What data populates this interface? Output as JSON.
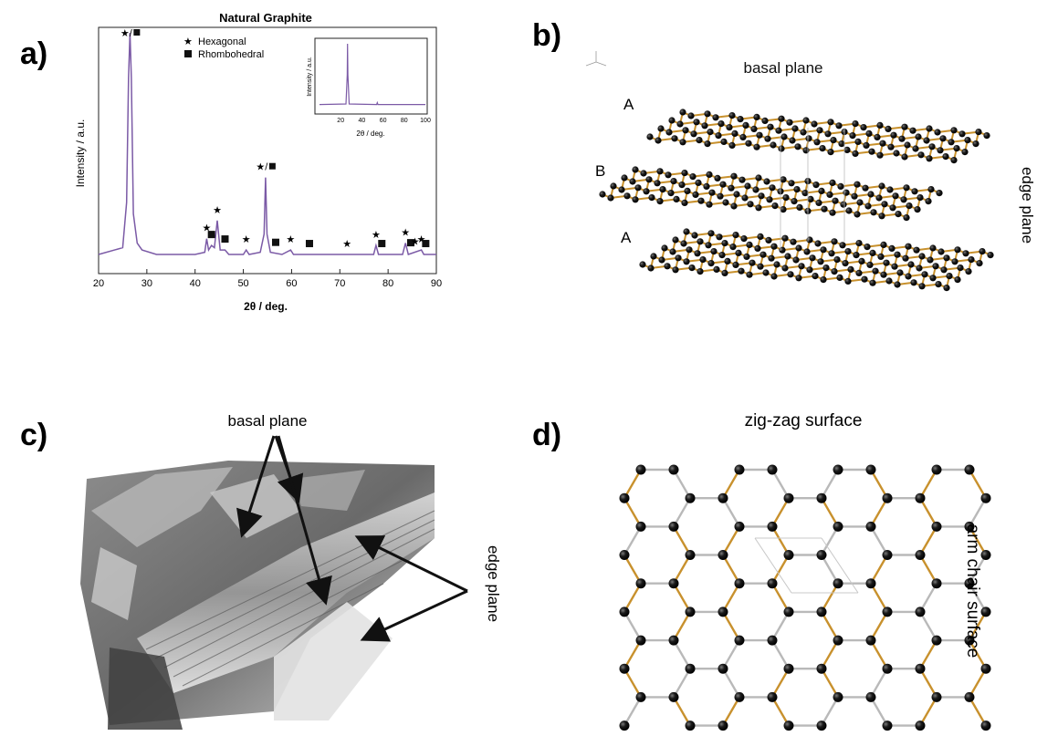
{
  "panels": {
    "a": {
      "letter": "a)",
      "title": "Natural Graphite",
      "legend": [
        {
          "symbol": "star",
          "label": "Hexagonal"
        },
        {
          "symbol": "square",
          "label": "Rhombohedral"
        }
      ],
      "peak_markers": [
        {
          "x": 26.5,
          "type": "star/square"
        },
        {
          "x": 42.4,
          "type": "star"
        },
        {
          "x": 43.4,
          "type": "square"
        },
        {
          "x": 44.6,
          "type": "star"
        },
        {
          "x": 46.2,
          "type": "square"
        },
        {
          "x": 50.6,
          "type": "star"
        },
        {
          "x": 54.6,
          "type": "star/square"
        },
        {
          "x": 56.7,
          "type": "square"
        },
        {
          "x": 59.8,
          "type": "star"
        },
        {
          "x": 63.7,
          "type": "square"
        },
        {
          "x": 71.5,
          "type": "star"
        },
        {
          "x": 77.5,
          "type": "star"
        },
        {
          "x": 78.7,
          "type": "square"
        },
        {
          "x": 83.6,
          "type": "star"
        },
        {
          "x": 84.7,
          "type": "square"
        },
        {
          "x": 85.6,
          "type": "star"
        },
        {
          "x": 86.9,
          "type": "star"
        },
        {
          "x": 87.8,
          "type": "square"
        }
      ]
    },
    "b": {
      "letter": "b)",
      "top_label": "basal plane",
      "right_label": "edge plane",
      "layers": [
        "A",
        "B",
        "A"
      ]
    },
    "c": {
      "letter": "c)",
      "top_label": "basal plane",
      "right_label": "edge plane"
    },
    "d": {
      "letter": "d)",
      "top_label": "zig-zag surface",
      "right_label": "arm chair surface"
    }
  },
  "chart_data": [
    {
      "type": "line",
      "title": "Natural Graphite",
      "xlabel": "2θ / deg.",
      "ylabel": "Intensity / a.u.",
      "xlim": [
        20,
        90
      ],
      "xticks": [
        20,
        30,
        40,
        50,
        60,
        70,
        80,
        90
      ],
      "ylim": [
        0,
        1
      ],
      "series": [
        {
          "x": [
            20,
            25,
            25.8,
            26.2,
            26.5,
            26.8,
            27.2,
            28,
            29,
            32,
            40,
            42,
            42.4,
            42.8,
            43.4,
            44,
            44.6,
            45.2,
            46.2,
            47,
            50,
            50.6,
            51.2,
            53.5,
            54.3,
            54.6,
            54.9,
            55.6,
            58,
            59.8,
            60.4,
            65,
            71.5,
            72,
            77,
            77.5,
            78,
            83,
            83.6,
            84.2,
            86.9,
            87.4,
            90
          ],
          "y": [
            0.02,
            0.05,
            0.25,
            0.8,
            1.0,
            0.8,
            0.2,
            0.07,
            0.04,
            0.02,
            0.02,
            0.03,
            0.09,
            0.04,
            0.06,
            0.05,
            0.17,
            0.04,
            0.04,
            0.02,
            0.02,
            0.04,
            0.02,
            0.03,
            0.11,
            0.36,
            0.11,
            0.03,
            0.02,
            0.04,
            0.02,
            0.02,
            0.02,
            0.02,
            0.02,
            0.06,
            0.02,
            0.02,
            0.07,
            0.02,
            0.04,
            0.02,
            0.02
          ]
        }
      ]
    },
    {
      "type": "line",
      "xlabel": "2θ / deg.",
      "ylabel": "Intensity / a.u.",
      "xlim": [
        0,
        100
      ],
      "xticks": [
        20,
        40,
        60,
        80,
        100
      ],
      "series": [
        {
          "x": [
            0,
            25,
            26.2,
            26.5,
            26.8,
            28,
            54,
            54.6,
            55.2,
            100
          ],
          "y": [
            0.02,
            0.03,
            0.5,
            1.0,
            0.5,
            0.03,
            0.02,
            0.05,
            0.02,
            0.02
          ]
        }
      ]
    }
  ],
  "colors": {
    "trace": "#7b5aa6",
    "bond": "#c8912d",
    "atom": "#111111",
    "grey_bond": "#b9b9b9"
  }
}
